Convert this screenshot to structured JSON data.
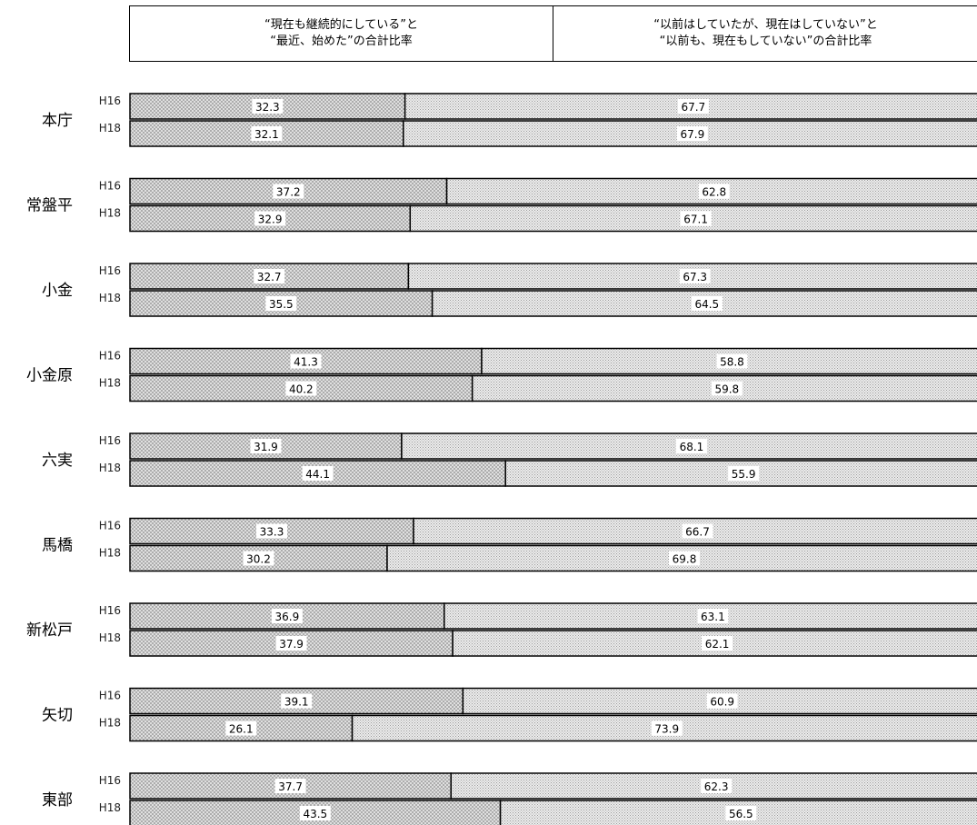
{
  "legend": {
    "series_a": [
      "“現在も継続的にしている”と",
      "“最近、始めた”の合計比率"
    ],
    "series_b": [
      "“以前はしていたが、現在はしていない”と",
      "“以前も、現在もしていない”の合計比率"
    ]
  },
  "colors": {
    "pattern_a": "#b8b8b8",
    "pattern_b": "#d6d6d6",
    "outline": "#000000"
  },
  "chart_data": {
    "type": "bar",
    "orientation": "horizontal",
    "stacked": true,
    "xlim": [
      0,
      100
    ],
    "groups": [
      {
        "name": "本庁",
        "rows": [
          {
            "label": "H16",
            "values": [
              32.3,
              67.7
            ]
          },
          {
            "label": "H18",
            "values": [
              32.1,
              67.9
            ]
          }
        ]
      },
      {
        "name": "常盤平",
        "rows": [
          {
            "label": "H16",
            "values": [
              37.2,
              62.8
            ]
          },
          {
            "label": "H18",
            "values": [
              32.9,
              67.1
            ]
          }
        ]
      },
      {
        "name": "小金",
        "rows": [
          {
            "label": "H16",
            "values": [
              32.7,
              67.3
            ]
          },
          {
            "label": "H18",
            "values": [
              35.5,
              64.5
            ]
          }
        ]
      },
      {
        "name": "小金原",
        "rows": [
          {
            "label": "H16",
            "values": [
              41.3,
              58.8
            ]
          },
          {
            "label": "H18",
            "values": [
              40.2,
              59.8
            ]
          }
        ]
      },
      {
        "name": "六実",
        "rows": [
          {
            "label": "H16",
            "values": [
              31.9,
              68.1
            ]
          },
          {
            "label": "H18",
            "values": [
              44.1,
              55.9
            ]
          }
        ]
      },
      {
        "name": "馬橋",
        "rows": [
          {
            "label": "H16",
            "values": [
              33.3,
              66.7
            ]
          },
          {
            "label": "H18",
            "values": [
              30.2,
              69.8
            ]
          }
        ]
      },
      {
        "name": "新松戸",
        "rows": [
          {
            "label": "H16",
            "values": [
              36.9,
              63.1
            ]
          },
          {
            "label": "H18",
            "values": [
              37.9,
              62.1
            ]
          }
        ]
      },
      {
        "name": "矢切",
        "rows": [
          {
            "label": "H16",
            "values": [
              39.1,
              60.9
            ]
          },
          {
            "label": "H18",
            "values": [
              26.1,
              73.9
            ]
          }
        ]
      },
      {
        "name": "東部",
        "rows": [
          {
            "label": "H16",
            "values": [
              37.7,
              62.3
            ]
          },
          {
            "label": "H18",
            "values": [
              43.5,
              56.5
            ]
          }
        ]
      }
    ]
  }
}
